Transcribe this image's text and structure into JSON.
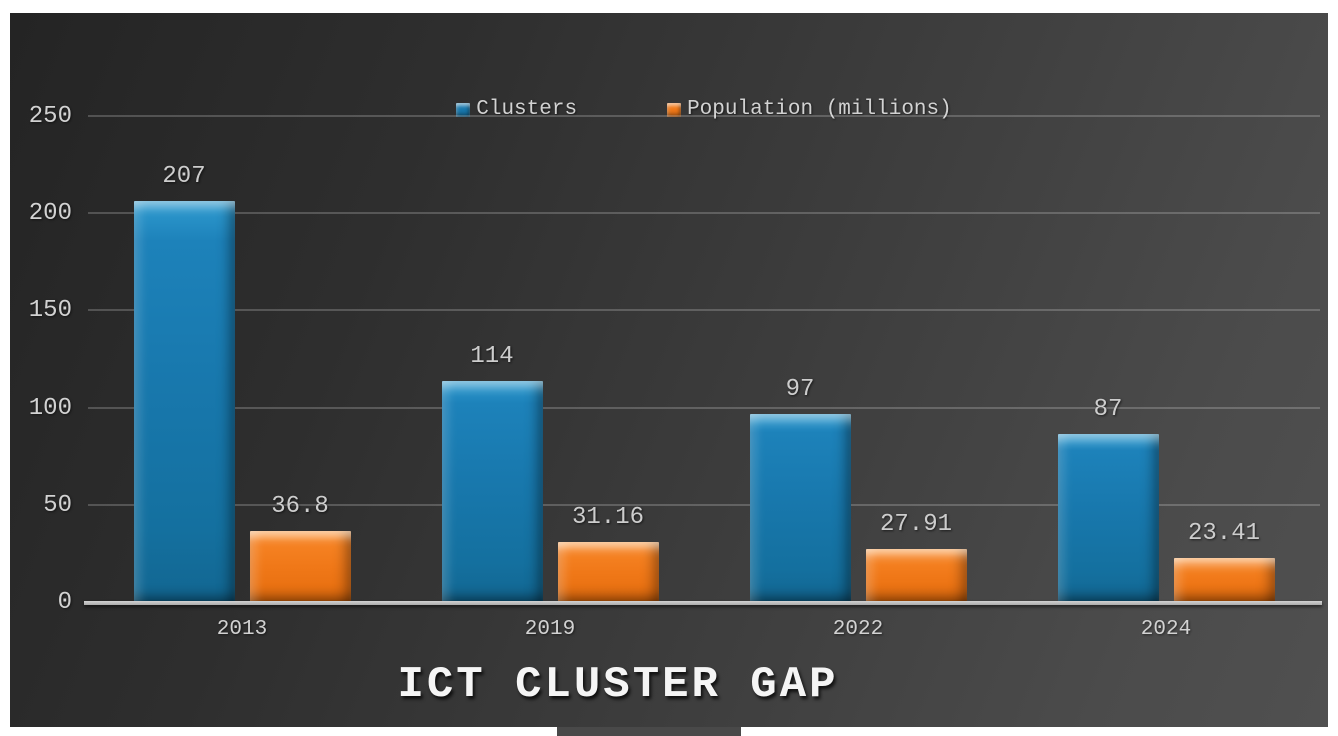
{
  "page": {
    "background": "#FFFFFF"
  },
  "slide": {
    "background_from": "#242424",
    "background_to": "#505050"
  },
  "chart_data": {
    "type": "bar",
    "title": "ICT CLUSTER GAP",
    "categories": [
      "2013",
      "2019",
      "2022",
      "2024"
    ],
    "series": [
      {
        "name": "Clusters",
        "color": "#1878AD",
        "values": [
          207,
          114,
          97,
          87
        ],
        "labels": [
          "207",
          "114",
          "97",
          "87"
        ]
      },
      {
        "name": "Population (millions)",
        "color": "#F07818",
        "values": [
          36.8,
          31.16,
          27.91,
          23.41
        ],
        "labels": [
          "36.8",
          "31.16",
          "27.91",
          "23.41"
        ]
      }
    ],
    "xlabel": "",
    "ylabel": "",
    "ylim": [
      0,
      250
    ],
    "yticks": [
      0,
      50,
      100,
      150,
      200,
      250
    ],
    "grid": true,
    "legend_position": "top-center"
  },
  "colors": {
    "axis_text": "#D2D2D2",
    "value_label": "#CDCDCD",
    "gridline": "#7E7E7E",
    "baseline": "#BEBEBE",
    "title_text": "#F5F5F5"
  }
}
